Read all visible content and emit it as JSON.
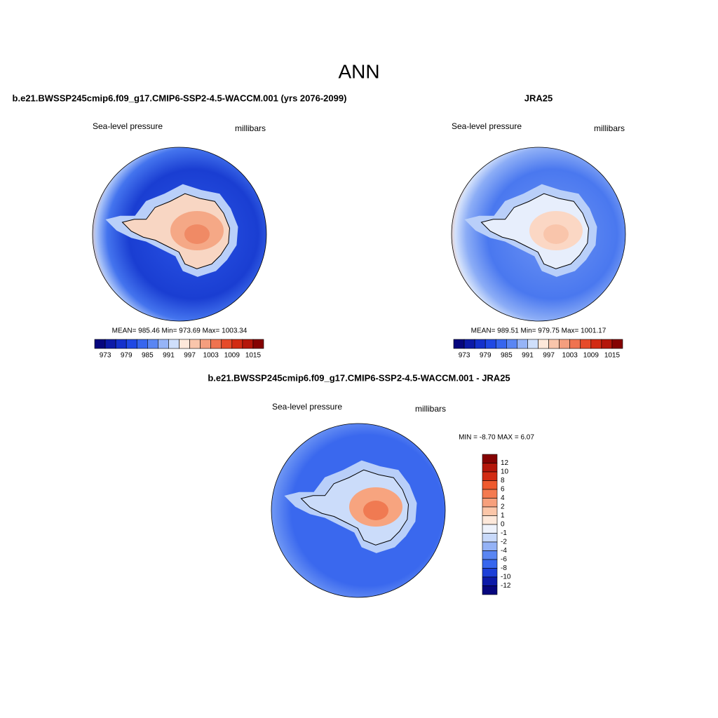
{
  "title": "ANN",
  "panels": [
    {
      "title": "b.e21.BWSSP245cmip6.f09_g17.CMIP6-SSP2-4.5-WACCM.001 (yrs 2076-2099)",
      "left_label": "Sea-level pressure",
      "right_label": "millibars",
      "stats": "MEAN= 985.46  Min= 973.69  Max= 1003.34",
      "colorbar": {
        "colors": [
          "#06067e",
          "#0c1aa8",
          "#1431cc",
          "#2049e4",
          "#3766ee",
          "#5a86f3",
          "#96b4f7",
          "#cfdffb",
          "#fde8da",
          "#f9c5ab",
          "#f49e7e",
          "#ef7350",
          "#e64b2a",
          "#d22b13",
          "#b4160a",
          "#850202"
        ],
        "labels": [
          973,
          979,
          985,
          991,
          997,
          1003,
          1009,
          1015
        ]
      }
    },
    {
      "title": "JRA25",
      "left_label": "Sea-level pressure",
      "right_label": "millibars",
      "stats": "MEAN= 989.51  Min= 979.75  Max= 1001.17",
      "colorbar": {
        "colors": [
          "#06067e",
          "#0c1aa8",
          "#1431cc",
          "#2049e4",
          "#3766ee",
          "#5a86f3",
          "#96b4f7",
          "#cfdffb",
          "#fde8da",
          "#f9c5ab",
          "#f49e7e",
          "#ef7350",
          "#e64b2a",
          "#d22b13",
          "#b4160a",
          "#850202"
        ],
        "labels": [
          973,
          979,
          985,
          991,
          997,
          1003,
          1009,
          1015
        ]
      }
    }
  ],
  "difference": {
    "title": "b.e21.BWSSP245cmip6.f09_g17.CMIP6-SSP2-4.5-WACCM.001 - JRA25",
    "left_label": "Sea-level pressure",
    "right_label": "millibars",
    "stats": "MIN =  -8.70 MAX =   6.07",
    "colorbar": {
      "colors": [
        "#850202",
        "#b4160a",
        "#d22b13",
        "#ef5a2e",
        "#f47a50",
        "#f7a07c",
        "#fbc6a8",
        "#fde8da",
        "#eef2fb",
        "#c8d9fa",
        "#94b2f6",
        "#5a86f3",
        "#3766ee",
        "#1c3fd8",
        "#0c1aa8",
        "#06067e"
      ],
      "labels": [
        12,
        10,
        8,
        6,
        4,
        2,
        1,
        0,
        -1,
        -2,
        -4,
        -6,
        -8,
        -10,
        -12
      ]
    }
  }
}
